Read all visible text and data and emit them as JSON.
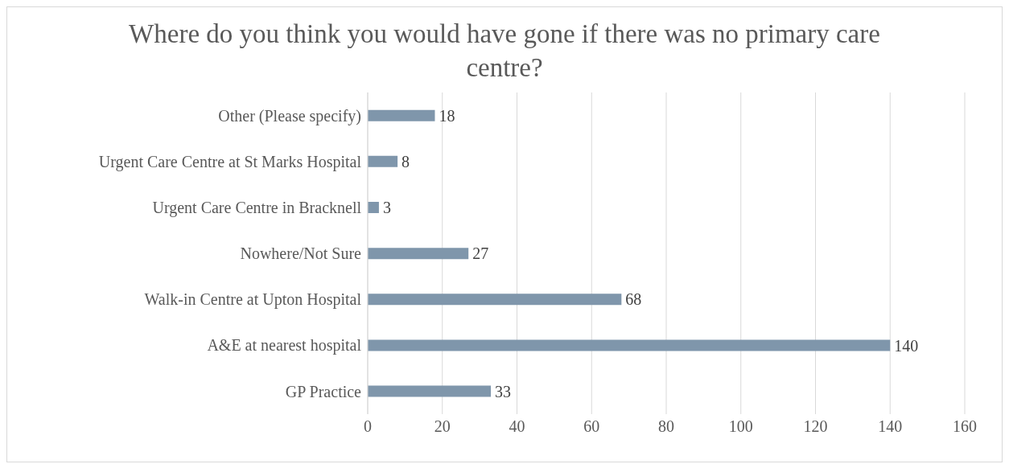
{
  "chart_data": {
    "type": "bar",
    "orientation": "horizontal",
    "title": "Where do you think you would have gone if there was no primary care centre?",
    "categories": [
      "Other (Please specify)",
      "Urgent Care Centre at St Marks Hospital",
      "Urgent Care Centre in Bracknell",
      "Nowhere/Not Sure",
      "Walk-in Centre at Upton Hospital",
      "A&E at nearest hospital",
      "GP Practice"
    ],
    "values": [
      18,
      8,
      3,
      27,
      68,
      140,
      33
    ],
    "color": "#7f96ab",
    "xlim": [
      0,
      160
    ],
    "xticks": [
      0,
      20,
      40,
      60,
      80,
      100,
      120,
      140,
      160
    ],
    "grid": "x",
    "data_labels": true
  }
}
